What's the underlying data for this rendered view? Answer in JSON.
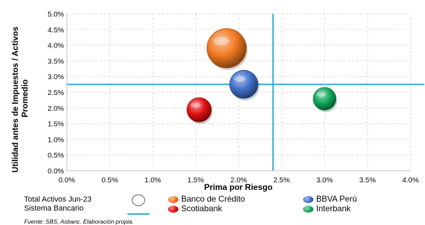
{
  "chart_data": {
    "type": "scatter",
    "title": "",
    "xlabel": "Prima por Riesgo",
    "ylabel": "Utilidad antes de Impuestos / Activos Promedio",
    "ylabel_lines": [
      "Utilidad antes de Impuestos / Activos",
      "Promedio"
    ],
    "xlim": [
      0.0,
      4.0
    ],
    "ylim": [
      0.0,
      5.0
    ],
    "x_ticks": [
      "0.0%",
      "0.5%",
      "1.0%",
      "1.5%",
      "2.0%",
      "2.5%",
      "3.0%",
      "3.5%",
      "4.0%"
    ],
    "y_ticks": [
      "0.0%",
      "0.5%",
      "1.0%",
      "1.5%",
      "2.0%",
      "2.5%",
      "3.0%",
      "3.5%",
      "4.0%",
      "4.5%",
      "5.0%"
    ],
    "grid": true,
    "reference_lines": {
      "x": 2.4,
      "y": 2.75,
      "color": "#2aa7d8"
    },
    "series": [
      {
        "name": "Banco de Crédito",
        "x": 1.86,
        "y": 3.9,
        "size": 3.0,
        "color": "#f07820"
      },
      {
        "name": "BBVA Perú",
        "x": 2.06,
        "y": 2.75,
        "size": 1.55,
        "color": "#3f6fc8"
      },
      {
        "name": "Scotiabank",
        "x": 1.54,
        "y": 1.94,
        "size": 1.15,
        "color": "#e01010"
      },
      {
        "name": "Interbank",
        "x": 3.0,
        "y": 2.29,
        "size": 1.0,
        "color": "#10a85a"
      }
    ]
  },
  "legend": {
    "size_label_line1": "Total Activos Jun-23",
    "size_label_line2": "Sistema Bancario",
    "items": [
      {
        "label": "Banco de Crédito",
        "color": "#f07820"
      },
      {
        "label": "BBVA Perú",
        "color": "#3f6fc8"
      },
      {
        "label": "Scotiabank",
        "color": "#e01010"
      },
      {
        "label": "Interbank",
        "color": "#10a85a"
      }
    ]
  },
  "source": "Fuente: SBS, Asbanc. Elaboración propia."
}
